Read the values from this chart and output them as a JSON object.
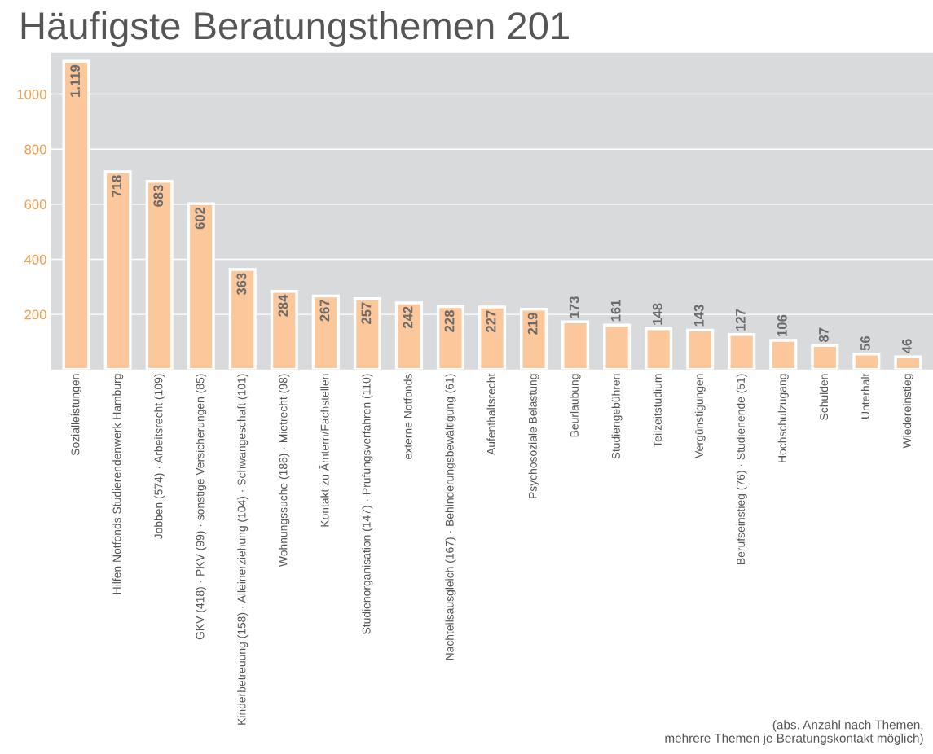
{
  "chart_data": {
    "type": "bar",
    "title": "Häufigste Beratungsthemen 201",
    "categories": [
      "Sozialleistungen",
      "Hilfen Notfonds Studierendenwerk Hamburg",
      "Jobben (574) · Arbeitsrecht (109)",
      "GKV (418) · PKV (99) · sonstige Versicherungen (85)",
      "Kinderbetreuung (158) · Alleinerziehung (104) · Schwangeschaft (101)",
      "Wohnungssuche (186) · Mietrecht (98)",
      "Kontakt zu Ämtern/Fachstellen",
      "Studienorganisation (147) · Prüfungsverfahren (110)",
      "externe Notfonds",
      "Nachteilsausgleich (167) · Behinderungsbewältigung (61)",
      "Aufenthaltsrecht",
      "Psychosoziale Belastung",
      "Beurlaubung",
      "Studiengebühren",
      "Teilzeitstudium",
      "Vergünstigungen",
      "Berufseinstieg (76) · Studienende (51)",
      "Hochschulzugang",
      "Schulden",
      "Unterhalt",
      "Wiedereinstieg"
    ],
    "values": [
      1119,
      718,
      683,
      602,
      363,
      284,
      267,
      257,
      242,
      228,
      227,
      219,
      173,
      161,
      148,
      143,
      127,
      106,
      87,
      56,
      46
    ],
    "value_labels": [
      "1.119",
      "718",
      "683",
      "602",
      "363",
      "284",
      "267",
      "257",
      "242",
      "228",
      "227",
      "219",
      "173",
      "161",
      "148",
      "143",
      "127",
      "106",
      "87",
      "56",
      "46"
    ],
    "color": "#fcc79b",
    "ylim": [
      0,
      1150
    ],
    "yticks": [
      200,
      400,
      600,
      800,
      1000
    ],
    "grid": "y",
    "annotations": [
      "(abs. Anzahl nach Themen,\nmehrere Themen je Beratungskontakt möglich)"
    ]
  }
}
